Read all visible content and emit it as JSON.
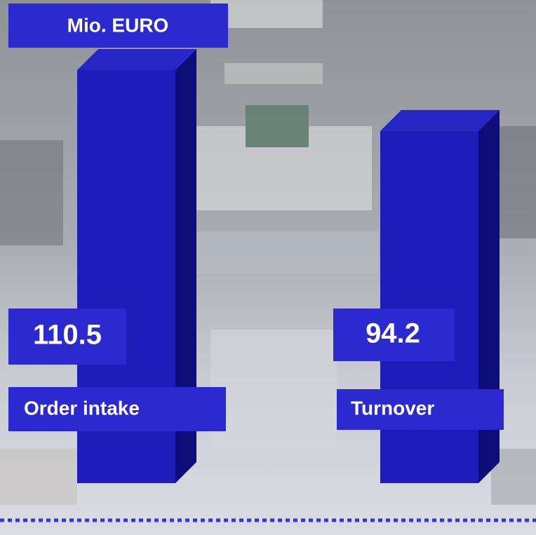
{
  "chart_data": {
    "type": "bar",
    "title": "Mio.  EURO",
    "categories": [
      "Order intake",
      "Turnover"
    ],
    "values": [
      110.5,
      94.2
    ],
    "color": "#1c1cb8"
  }
}
